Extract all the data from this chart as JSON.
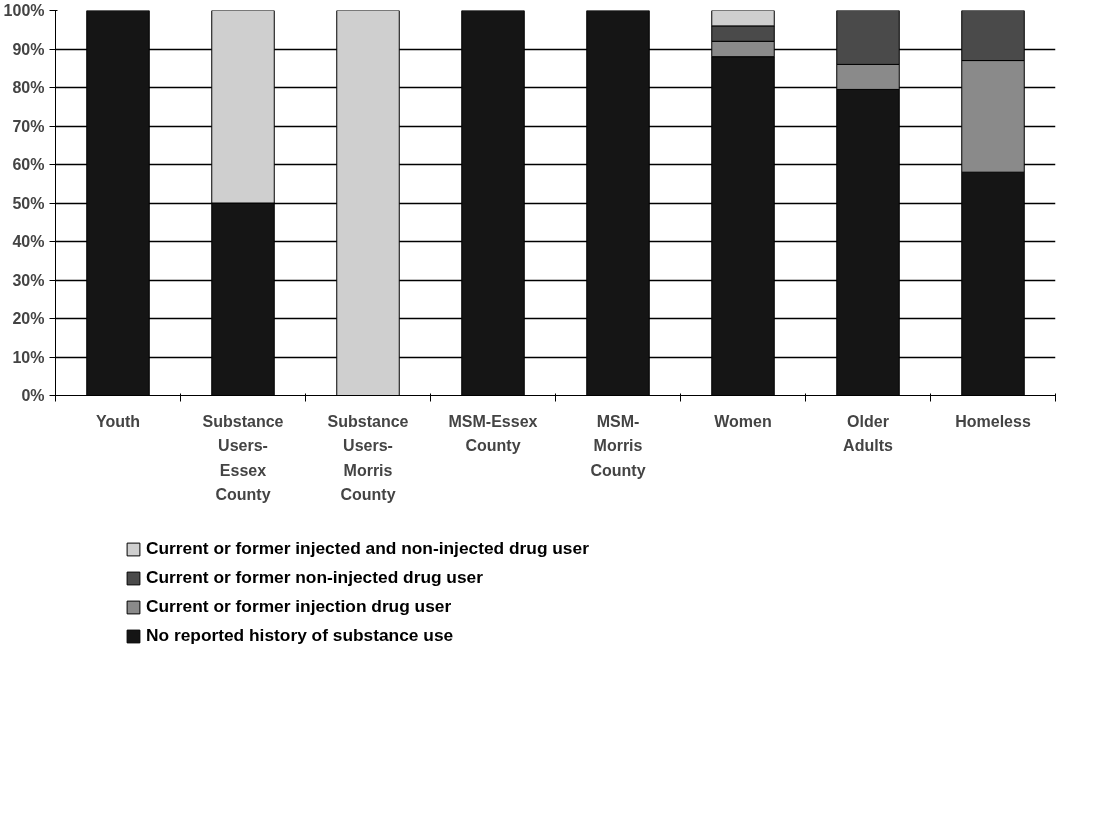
{
  "chart_data": {
    "type": "bar",
    "stacked": true,
    "categories": [
      "Youth",
      "Substance Users-Essex County",
      "Substance Users-Morris County",
      "MSM-Essex County",
      "MSM-Morris County",
      "Women",
      "Older Adults",
      "Homeless"
    ],
    "series": [
      {
        "name": "No reported history of substance use",
        "color": "#151515",
        "values": [
          100,
          50,
          0,
          100,
          100,
          88,
          79.5,
          58
        ]
      },
      {
        "name": "Current or former injection drug user",
        "color": "#8a8a8a",
        "values": [
          0,
          0,
          0,
          0,
          0,
          4,
          6.5,
          29
        ]
      },
      {
        "name": "Current or former non-injected drug user",
        "color": "#4a4a4a",
        "values": [
          0,
          0,
          0,
          0,
          0,
          4,
          14,
          13
        ]
      },
      {
        "name": "Current or former injected and non-injected drug user",
        "color": "#cfcfcf",
        "values": [
          0,
          50,
          100,
          0,
          0,
          4,
          0,
          0
        ]
      }
    ],
    "ylim": [
      0,
      100
    ],
    "yticks": [
      {
        "value": 0,
        "label": "0%"
      },
      {
        "value": 10,
        "label": "10%"
      },
      {
        "value": 20,
        "label": "20%"
      },
      {
        "value": 30,
        "label": "30%"
      },
      {
        "value": 40,
        "label": "40%"
      },
      {
        "value": 50,
        "label": "50%"
      },
      {
        "value": 60,
        "label": "60%"
      },
      {
        "value": 70,
        "label": "70%"
      },
      {
        "value": 80,
        "label": "80%"
      },
      {
        "value": 90,
        "label": "90%"
      },
      {
        "value": 100,
        "label": "100%"
      }
    ],
    "grid": "y",
    "legend": "bottom"
  }
}
